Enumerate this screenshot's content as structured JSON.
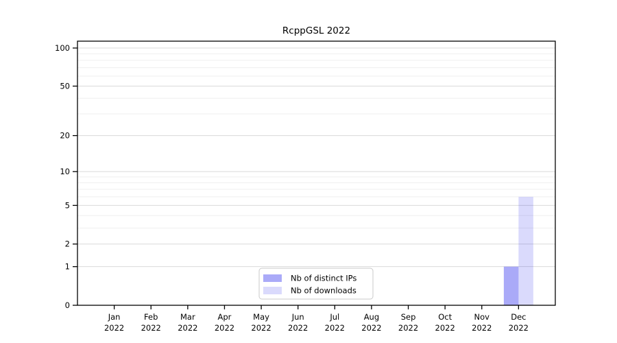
{
  "page": {
    "background_color": "#ffffff"
  },
  "chart_data": {
    "type": "bar",
    "title": "RcppGSL 2022",
    "categories": [
      "Jan",
      "Feb",
      "Mar",
      "Apr",
      "May",
      "Jun",
      "Jul",
      "Aug",
      "Sep",
      "Oct",
      "Nov",
      "Dec"
    ],
    "category_year": "2022",
    "series": [
      {
        "name": "Nb of distinct IPs",
        "color": "#4646f0",
        "opacity": 0.46,
        "values": [
          0,
          0,
          0,
          0,
          0,
          0,
          0,
          0,
          0,
          0,
          0,
          1
        ]
      },
      {
        "name": "Nb of downloads",
        "color": "#4646f0",
        "opacity": 0.2,
        "values": [
          0,
          0,
          0,
          0,
          0,
          0,
          0,
          0,
          0,
          0,
          0,
          6
        ]
      }
    ],
    "xlabel": "",
    "ylabel": "",
    "yscale": "log1p",
    "ylim": [
      0,
      113
    ],
    "yticks": [
      0,
      1,
      2,
      5,
      10,
      20,
      50,
      100
    ],
    "minor_gridlines": [
      3,
      4,
      6,
      7,
      8,
      9,
      30,
      40,
      60,
      70,
      80,
      90
    ],
    "grid": {
      "major_color": "#d9d9d9",
      "minor_color": "#efefef",
      "grid_on": true
    },
    "axis_color": "#000000",
    "text_color": "#000000",
    "legend": {
      "position": "bottom-center-inside",
      "border_color": "#c9c9c9",
      "fill_color": "#ffffff"
    }
  }
}
